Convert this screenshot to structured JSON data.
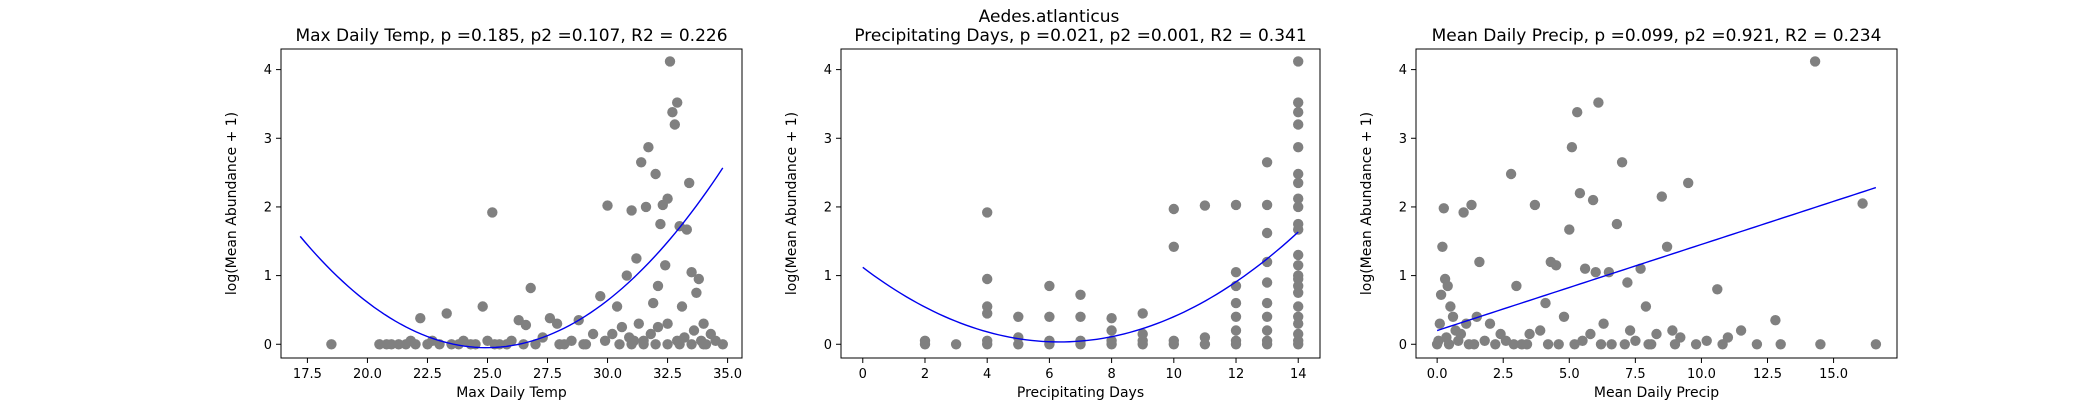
{
  "figure": {
    "suptitle": "Aedes.atlanticus",
    "point_color": "#808080",
    "fit_color": "#0000ee"
  },
  "chart_data": [
    {
      "type": "scatter",
      "title": "Max Daily Temp, p =0.185, p2 =0.107, R2 = 0.226",
      "xlabel": "Max Daily Temp",
      "ylabel": "log(Mean Abundance + 1)",
      "xlim": [
        16.4,
        35.6
      ],
      "ylim": [
        -0.2,
        4.3
      ],
      "xticks": [
        17.5,
        20.0,
        22.5,
        25.0,
        27.5,
        30.0,
        32.5,
        35.0
      ],
      "xtick_labels": [
        "17.5",
        "20.0",
        "22.5",
        "25.0",
        "27.5",
        "30.0",
        "32.5",
        "35.0"
      ],
      "yticks": [
        0,
        1,
        2,
        3,
        4
      ],
      "ytick_labels": [
        "0",
        "1",
        "2",
        "3",
        "4"
      ],
      "fit": {
        "kind": "quadratic",
        "coef": [
          16.7456,
          -1.3463,
          0.02698
        ],
        "x_range": [
          17.2,
          34.8
        ]
      },
      "points": [
        [
          18.5,
          0
        ],
        [
          20.5,
          0
        ],
        [
          20.8,
          0
        ],
        [
          21.0,
          0
        ],
        [
          21.3,
          0
        ],
        [
          21.6,
          0
        ],
        [
          21.8,
          0.05
        ],
        [
          22.0,
          0
        ],
        [
          22.2,
          0.38
        ],
        [
          22.5,
          0
        ],
        [
          22.7,
          0.05
        ],
        [
          23.0,
          0
        ],
        [
          23.3,
          0.45
        ],
        [
          23.5,
          0
        ],
        [
          23.8,
          0
        ],
        [
          24.0,
          0.05
        ],
        [
          24.3,
          0
        ],
        [
          24.5,
          0
        ],
        [
          24.8,
          0.55
        ],
        [
          25.0,
          0.05
        ],
        [
          25.2,
          1.92
        ],
        [
          25.5,
          0
        ],
        [
          25.8,
          0
        ],
        [
          26.0,
          0.05
        ],
        [
          26.3,
          0.35
        ],
        [
          26.6,
          0.28
        ],
        [
          26.8,
          0.82
        ],
        [
          27.0,
          0
        ],
        [
          27.3,
          0.1
        ],
        [
          27.6,
          0.38
        ],
        [
          27.9,
          0.3
        ],
        [
          28.2,
          0
        ],
        [
          28.5,
          0.05
        ],
        [
          28.8,
          0.35
        ],
        [
          29.1,
          0
        ],
        [
          29.4,
          0.15
        ],
        [
          29.7,
          0.7
        ],
        [
          29.9,
          0.05
        ],
        [
          30.0,
          2.02
        ],
        [
          30.2,
          0.15
        ],
        [
          30.4,
          0.55
        ],
        [
          30.6,
          0.25
        ],
        [
          30.8,
          1.0
        ],
        [
          30.9,
          0.1
        ],
        [
          31.0,
          1.95
        ],
        [
          31.1,
          0.05
        ],
        [
          31.2,
          1.25
        ],
        [
          31.3,
          0.3
        ],
        [
          31.4,
          2.65
        ],
        [
          31.5,
          0.05
        ],
        [
          31.6,
          2.0
        ],
        [
          31.7,
          2.87
        ],
        [
          31.8,
          0.15
        ],
        [
          31.9,
          0.6
        ],
        [
          32.0,
          2.48
        ],
        [
          32.1,
          0.85
        ],
        [
          32.1,
          0.25
        ],
        [
          32.2,
          1.75
        ],
        [
          32.3,
          2.03
        ],
        [
          32.4,
          1.15
        ],
        [
          32.5,
          2.12
        ],
        [
          32.5,
          0.3
        ],
        [
          32.6,
          4.12
        ],
        [
          32.7,
          3.38
        ],
        [
          32.8,
          3.2
        ],
        [
          32.9,
          3.52
        ],
        [
          32.9,
          0.05
        ],
        [
          33.0,
          1.72
        ],
        [
          33.1,
          0.55
        ],
        [
          33.2,
          0.1
        ],
        [
          33.3,
          1.67
        ],
        [
          33.4,
          2.35
        ],
        [
          33.5,
          1.05
        ],
        [
          33.6,
          0.2
        ],
        [
          33.7,
          0.75
        ],
        [
          33.8,
          0.95
        ],
        [
          33.9,
          0.05
        ],
        [
          34.0,
          0.3
        ],
        [
          34.1,
          0
        ],
        [
          34.3,
          0.15
        ],
        [
          34.5,
          0.05
        ],
        [
          34.8,
          0
        ],
        [
          30.5,
          0
        ],
        [
          31.0,
          0
        ],
        [
          31.5,
          0
        ],
        [
          32.0,
          0
        ],
        [
          32.5,
          0
        ],
        [
          33.0,
          0
        ],
        [
          33.5,
          0
        ],
        [
          34.0,
          0
        ],
        [
          29.0,
          0
        ],
        [
          28.0,
          0
        ],
        [
          26.5,
          0
        ],
        [
          25.3,
          0
        ]
      ]
    },
    {
      "type": "scatter",
      "title": "Precipitating Days, p =0.021, p2 =0.001, R2 = 0.341",
      "xlabel": "Precipitating Days",
      "ylabel": "log(Mean Abundance + 1)",
      "xlim": [
        -0.7,
        14.7
      ],
      "ylim": [
        -0.2,
        4.3
      ],
      "xticks": [
        0,
        2,
        4,
        6,
        8,
        10,
        12,
        14
      ],
      "xtick_labels": [
        "0",
        "2",
        "4",
        "6",
        "8",
        "10",
        "12",
        "14"
      ],
      "yticks": [
        0,
        1,
        2,
        3,
        4
      ],
      "ytick_labels": [
        "0",
        "1",
        "2",
        "3",
        "4"
      ],
      "fit": {
        "kind": "quadratic",
        "coef": [
          1.12,
          -0.3436,
          0.02717
        ],
        "x_range": [
          0,
          14
        ]
      },
      "points": [
        [
          2,
          0
        ],
        [
          2,
          0.05
        ],
        [
          3,
          0
        ],
        [
          4,
          1.92
        ],
        [
          4,
          0.95
        ],
        [
          4,
          0.55
        ],
        [
          4,
          0.45
        ],
        [
          4,
          0.05
        ],
        [
          4,
          0
        ],
        [
          5,
          0.4
        ],
        [
          5,
          0.1
        ],
        [
          5,
          0
        ],
        [
          6,
          0.85
        ],
        [
          6,
          0.4
        ],
        [
          6,
          0.05
        ],
        [
          6,
          0
        ],
        [
          7,
          0.72
        ],
        [
          7,
          0.4
        ],
        [
          7,
          0.05
        ],
        [
          7,
          0
        ],
        [
          8,
          0.38
        ],
        [
          8,
          0.2
        ],
        [
          8,
          0.05
        ],
        [
          8,
          0
        ],
        [
          9,
          0.45
        ],
        [
          9,
          0.15
        ],
        [
          9,
          0.05
        ],
        [
          9,
          0
        ],
        [
          10,
          1.97
        ],
        [
          10,
          1.42
        ],
        [
          10,
          0.05
        ],
        [
          10,
          0
        ],
        [
          11,
          2.02
        ],
        [
          11,
          0.1
        ],
        [
          11,
          0
        ],
        [
          12,
          2.03
        ],
        [
          12,
          1.05
        ],
        [
          12,
          0.85
        ],
        [
          12,
          0.6
        ],
        [
          12,
          0.4
        ],
        [
          12,
          0.2
        ],
        [
          12,
          0.05
        ],
        [
          12,
          0
        ],
        [
          13,
          2.65
        ],
        [
          13,
          2.03
        ],
        [
          13,
          1.62
        ],
        [
          13,
          1.2
        ],
        [
          13,
          0.9
        ],
        [
          13,
          0.6
        ],
        [
          13,
          0.4
        ],
        [
          13,
          0.2
        ],
        [
          13,
          0.05
        ],
        [
          13,
          0
        ],
        [
          14,
          4.12
        ],
        [
          14,
          3.52
        ],
        [
          14,
          3.38
        ],
        [
          14,
          3.2
        ],
        [
          14,
          2.87
        ],
        [
          14,
          2.48
        ],
        [
          14,
          2.35
        ],
        [
          14,
          2.12
        ],
        [
          14,
          2.0
        ],
        [
          14,
          1.75
        ],
        [
          14,
          1.67
        ],
        [
          14,
          1.3
        ],
        [
          14,
          1.15
        ],
        [
          14,
          1.0
        ],
        [
          14,
          0.95
        ],
        [
          14,
          0.85
        ],
        [
          14,
          0.75
        ],
        [
          14,
          0.55
        ],
        [
          14,
          0.4
        ],
        [
          14,
          0.3
        ],
        [
          14,
          0.15
        ],
        [
          14,
          0.05
        ],
        [
          14,
          0
        ]
      ]
    },
    {
      "type": "scatter",
      "title": "Mean Daily Precip, p =0.099, p2 =0.921, R2 = 0.234",
      "xlabel": "Mean Daily Precip",
      "ylabel": "log(Mean Abundance + 1)",
      "xlim": [
        -0.8,
        17.4
      ],
      "ylim": [
        -0.2,
        4.3
      ],
      "xticks": [
        0.0,
        2.5,
        5.0,
        7.5,
        10.0,
        12.5,
        15.0
      ],
      "xtick_labels": [
        "0.0",
        "2.5",
        "5.0",
        "7.5",
        "10.0",
        "12.5",
        "15.0"
      ],
      "yticks": [
        0,
        1,
        2,
        3,
        4
      ],
      "ytick_labels": [
        "0",
        "1",
        "2",
        "3",
        "4"
      ],
      "fit": {
        "kind": "linear",
        "coef": [
          0.2,
          0.1254
        ],
        "x_range": [
          0,
          16.6
        ]
      },
      "points": [
        [
          0.0,
          0
        ],
        [
          0.05,
          0.05
        ],
        [
          0.1,
          0.3
        ],
        [
          0.15,
          0.72
        ],
        [
          0.2,
          1.42
        ],
        [
          0.25,
          1.98
        ],
        [
          0.3,
          0.95
        ],
        [
          0.35,
          0.1
        ],
        [
          0.4,
          0.85
        ],
        [
          0.45,
          0
        ],
        [
          0.5,
          0.55
        ],
        [
          0.6,
          0.4
        ],
        [
          0.7,
          0.2
        ],
        [
          0.8,
          0.05
        ],
        [
          0.9,
          0.15
        ],
        [
          1.0,
          1.92
        ],
        [
          1.1,
          0.3
        ],
        [
          1.2,
          0
        ],
        [
          1.3,
          2.03
        ],
        [
          1.5,
          0.4
        ],
        [
          1.6,
          1.2
        ],
        [
          1.8,
          0.05
        ],
        [
          2.0,
          0.3
        ],
        [
          2.2,
          0
        ],
        [
          2.4,
          0.15
        ],
        [
          2.6,
          0.05
        ],
        [
          2.8,
          2.48
        ],
        [
          3.0,
          0.85
        ],
        [
          3.2,
          0
        ],
        [
          3.5,
          0.15
        ],
        [
          3.7,
          2.03
        ],
        [
          3.9,
          0.2
        ],
        [
          4.1,
          0.6
        ],
        [
          4.3,
          1.2
        ],
        [
          4.5,
          1.15
        ],
        [
          4.6,
          0
        ],
        [
          4.8,
          0.4
        ],
        [
          5.0,
          1.67
        ],
        [
          5.1,
          2.87
        ],
        [
          5.3,
          3.38
        ],
        [
          5.4,
          2.2
        ],
        [
          5.5,
          0.05
        ],
        [
          5.6,
          1.1
        ],
        [
          5.8,
          0.15
        ],
        [
          5.9,
          2.1
        ],
        [
          6.0,
          1.05
        ],
        [
          6.1,
          3.52
        ],
        [
          6.3,
          0.3
        ],
        [
          6.5,
          1.05
        ],
        [
          6.6,
          0
        ],
        [
          6.8,
          1.75
        ],
        [
          7.0,
          2.65
        ],
        [
          7.2,
          0.9
        ],
        [
          7.3,
          0.2
        ],
        [
          7.5,
          0.05
        ],
        [
          7.7,
          1.1
        ],
        [
          7.9,
          0.55
        ],
        [
          8.1,
          0
        ],
        [
          8.3,
          0.15
        ],
        [
          8.5,
          2.15
        ],
        [
          8.7,
          1.42
        ],
        [
          8.9,
          0.2
        ],
        [
          9.2,
          0.1
        ],
        [
          9.5,
          2.35
        ],
        [
          9.8,
          0
        ],
        [
          10.2,
          0.05
        ],
        [
          10.6,
          0.8
        ],
        [
          11.0,
          0.1
        ],
        [
          11.5,
          0.2
        ],
        [
          12.1,
          0
        ],
        [
          12.8,
          0.35
        ],
        [
          14.3,
          4.12
        ],
        [
          14.5,
          0
        ],
        [
          16.1,
          2.05
        ],
        [
          16.6,
          0
        ],
        [
          1.4,
          0
        ],
        [
          2.9,
          0
        ],
        [
          3.4,
          0
        ],
        [
          4.2,
          0
        ],
        [
          5.2,
          0
        ],
        [
          6.2,
          0
        ],
        [
          7.1,
          0
        ],
        [
          8.0,
          0
        ],
        [
          9.0,
          0
        ],
        [
          10.8,
          0
        ],
        [
          13.0,
          0
        ]
      ]
    }
  ]
}
